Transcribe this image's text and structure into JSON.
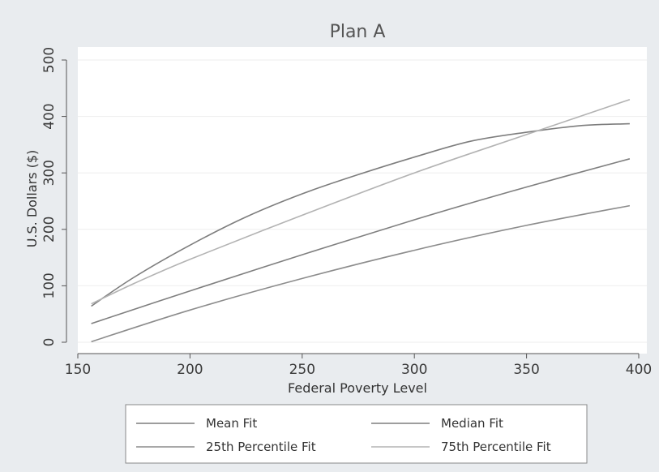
{
  "chart_data": {
    "type": "line",
    "title": "Plan A",
    "xlabel": "Federal Poverty Level",
    "ylabel": "U.S. Dollars ($)",
    "xlim": [
      150,
      400
    ],
    "ylim": [
      0,
      500
    ],
    "xticks": [
      150,
      200,
      250,
      300,
      350,
      400
    ],
    "yticks": [
      0,
      100,
      200,
      300,
      400,
      500
    ],
    "grid": "horizontal",
    "legend_position": "bottom",
    "series": [
      {
        "name": "Mean Fit",
        "color": "#7d7d7d",
        "x": [
          156,
          175,
          200,
          225,
          250,
          275,
          300,
          325,
          350,
          375,
          396
        ],
        "y": [
          64,
          115,
          172,
          222,
          263,
          297,
          328,
          356,
          372,
          384,
          387
        ]
      },
      {
        "name": "Median Fit",
        "color": "#7f7f7f",
        "x": [
          156,
          200,
          250,
          300,
          350,
          396
        ],
        "y": [
          33,
          91,
          155,
          217,
          275,
          325
        ]
      },
      {
        "name": "25th Percentile Fit",
        "color": "#8c8c8c",
        "x": [
          156,
          200,
          250,
          300,
          350,
          396
        ],
        "y": [
          1,
          57,
          113,
          163,
          207,
          242
        ]
      },
      {
        "name": "75th Percentile Fit",
        "color": "#b3b3b3",
        "x": [
          156,
          175,
          200,
          250,
          300,
          350,
          396
        ],
        "y": [
          68,
          104,
          147,
          225,
          300,
          368,
          430
        ]
      }
    ]
  }
}
